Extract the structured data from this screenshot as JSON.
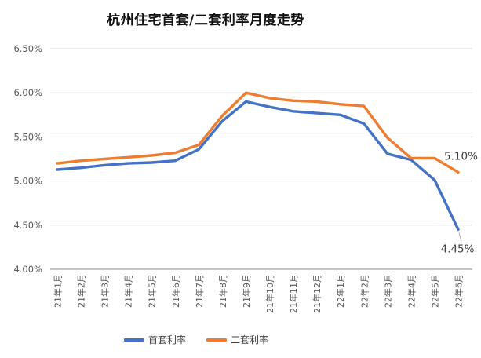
{
  "chart_data": {
    "type": "line",
    "title": "杭州住宅首套/二套利率月度走势",
    "categories": [
      "21年1月",
      "21年2月",
      "21年3月",
      "21年4月",
      "21年5月",
      "21年6月",
      "21年7月",
      "21年8月",
      "21年9月",
      "21年10月",
      "21年11月",
      "21年12月",
      "22年1月",
      "22年2月",
      "22年3月",
      "22年4月",
      "22年5月",
      "22年6月"
    ],
    "series": [
      {
        "name": "首套利率",
        "color": "#4472C4",
        "values": [
          5.13,
          5.15,
          5.18,
          5.2,
          5.21,
          5.23,
          5.36,
          5.68,
          5.9,
          5.84,
          5.79,
          5.77,
          5.75,
          5.65,
          5.31,
          5.24,
          5.01,
          4.45
        ]
      },
      {
        "name": "二套利率",
        "color": "#ED7D31",
        "values": [
          5.2,
          5.23,
          5.25,
          5.27,
          5.29,
          5.32,
          5.41,
          5.74,
          6.0,
          5.94,
          5.91,
          5.9,
          5.87,
          5.85,
          5.49,
          5.26,
          5.26,
          5.1
        ]
      }
    ],
    "ylim": [
      4.0,
      6.5
    ],
    "ytick_step": 0.5,
    "ytick_labels": [
      "4.00%",
      "4.50%",
      "5.00%",
      "5.50%",
      "6.00%",
      "6.50%"
    ],
    "annotations": [
      {
        "text": "5.10%",
        "series": 1,
        "point": 17
      },
      {
        "text": "4.45%",
        "series": 0,
        "point": 17
      }
    ],
    "legend_position": "bottom",
    "grid": "horizontal",
    "colors": {
      "gridline": "#D9D9D9",
      "axis_line": "#BFBFBF",
      "tick_text": "#595959",
      "data_label": "#404040",
      "leader_line": "#A6A6A6",
      "background": "#FFFFFF"
    }
  }
}
